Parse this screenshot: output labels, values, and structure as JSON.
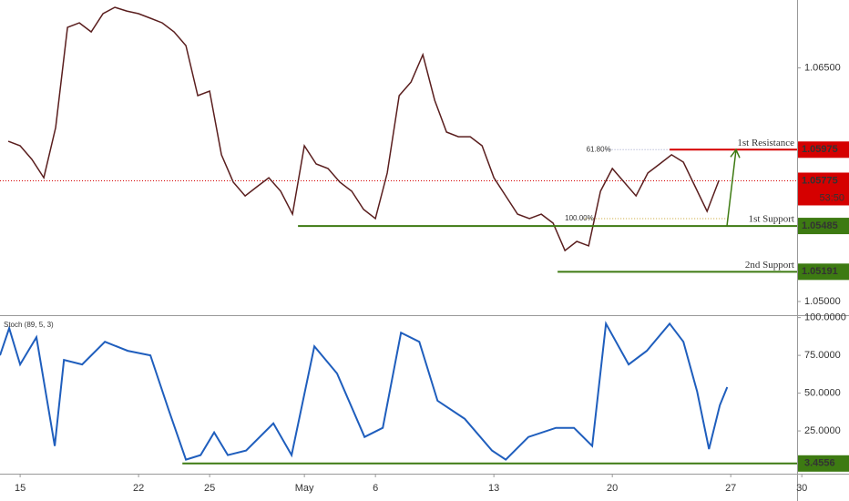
{
  "chart_data": {
    "type": "line",
    "xlim": [
      -0.85,
      32.8
    ],
    "xticks": [
      {
        "value": 0,
        "label": "15"
      },
      {
        "value": 5,
        "label": "22"
      },
      {
        "value": 8,
        "label": "25"
      },
      {
        "value": 12,
        "label": "May"
      },
      {
        "value": 15,
        "label": "6"
      },
      {
        "value": 20,
        "label": "13"
      },
      {
        "value": 25,
        "label": "20"
      },
      {
        "value": 30,
        "label": "27"
      },
      {
        "value": 33,
        "label": "30"
      }
    ],
    "ylim": [
      1.04918,
      1.06936
    ],
    "yticks": [
      {
        "value": 1.065,
        "label": "1.06500"
      },
      {
        "value": 1.05,
        "label": "1.05000"
      }
    ],
    "y2lim": [
      -3.3,
      101
    ],
    "y2ticks": [
      {
        "value": 100,
        "label": "100.0000"
      },
      {
        "value": 75,
        "label": "75.0000"
      },
      {
        "value": 50,
        "label": "50.0000"
      },
      {
        "value": 25,
        "label": "25.0000"
      }
    ],
    "series": [
      {
        "color": "#5a1e1e",
        "x": [
          -0.5,
          0,
          0.5,
          1,
          1.5,
          2,
          2.5,
          3,
          3.5,
          4,
          4.5,
          5,
          5.5,
          6,
          6.5,
          7,
          7.5,
          8,
          8.5,
          9,
          9.5,
          10,
          10.5,
          11,
          11.5,
          12,
          12.5,
          13,
          13.5,
          14,
          14.5,
          15,
          15.5,
          16,
          16.5,
          17,
          17.5,
          18,
          18.5,
          19,
          19.5,
          20,
          20.5,
          21,
          21.5,
          22,
          22.5,
          23,
          23.5,
          24,
          24.5,
          25,
          25.5,
          26,
          26.5,
          27,
          27.5,
          28,
          28.5,
          29,
          29.5
        ],
        "values": [
          1.06029,
          1.06,
          1.05912,
          1.05795,
          1.06117,
          1.0676,
          1.06789,
          1.06731,
          1.06848,
          1.06889,
          1.06865,
          1.06848,
          1.06819,
          1.06789,
          1.06731,
          1.06643,
          1.06322,
          1.06351,
          1.05942,
          1.05766,
          1.05678,
          1.05737,
          1.05795,
          1.05708,
          1.05561,
          1.06,
          1.05883,
          1.05854,
          1.05766,
          1.05708,
          1.05591,
          1.05532,
          1.05825,
          1.06322,
          1.06409,
          1.06585,
          1.06292,
          1.06088,
          1.06058,
          1.06058,
          1.06,
          1.05795,
          1.05678,
          1.05561,
          1.05532,
          1.05561,
          1.05503,
          1.05327,
          1.05386,
          1.05357,
          1.05708,
          1.05854,
          1.05766,
          1.05678,
          1.05825,
          1.05883,
          1.05942,
          1.05895,
          1.05737,
          1.05579,
          1.05778
        ]
      },
      {
        "name": "Stoch (89, 5, 3)",
        "color": "#1f5ebd",
        "axis": "y2",
        "x": [
          -0.85,
          -0.46,
          0,
          0.69,
          1.46,
          1.85,
          2.62,
          3.58,
          4.54,
          5.5,
          6.27,
          7,
          7.62,
          8.19,
          8.77,
          9.54,
          10.69,
          11.46,
          12.42,
          13.38,
          14.54,
          15.31,
          16.08,
          16.85,
          17.62,
          18.77,
          19.92,
          20.5,
          21.46,
          22.62,
          23.38,
          24.15,
          24.73,
          25.69,
          26.46,
          27.42,
          28,
          28.58,
          29.08,
          29.54,
          29.85
        ],
        "values": [
          75,
          93,
          69,
          87,
          15,
          72,
          69,
          84,
          78,
          75,
          39,
          6,
          9,
          24,
          9,
          12,
          30,
          9,
          81,
          63,
          21,
          27,
          90,
          84,
          45,
          33,
          12,
          6,
          21,
          27,
          27,
          15,
          96,
          69,
          78,
          96,
          84,
          51,
          13,
          42,
          54
        ]
      }
    ],
    "levels": [
      {
        "name": "1st Resistance",
        "value": 1.05975,
        "value_label": "1.05975",
        "x_start": 27.42,
        "color": "#d50000"
      },
      {
        "name": "1st Support",
        "value": 1.05485,
        "value_label": "1.05485",
        "x_start": 11.73,
        "color": "#3d7a12"
      },
      {
        "name": "2nd Support",
        "value": 1.05191,
        "value_label": "1.05191",
        "x_start": 22.69,
        "color": "#3d7a12"
      }
    ],
    "fib_levels": [
      {
        "label": "61.80%",
        "value": 1.05975,
        "x_start": 23.9
      },
      {
        "label": "100.00%",
        "value": 1.05532,
        "x_start": 23.0
      }
    ],
    "current_price": {
      "value": 1.05775,
      "label": "1.05775",
      "countdown": "53:50",
      "color": "#d50000"
    },
    "stoch_level": {
      "value": 3.4556,
      "label": "3.4556",
      "x_start": 6.85,
      "color": "#3d7a12"
    }
  }
}
